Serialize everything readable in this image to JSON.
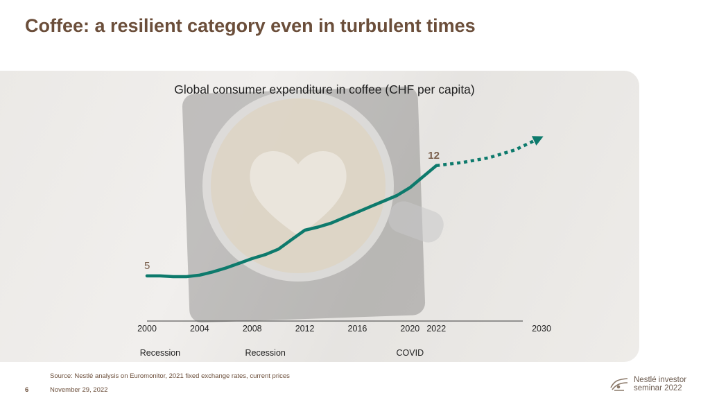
{
  "slide": {
    "title": "Coffee: a resilient category even in turbulent times",
    "source_note": "Source: Nestlé analysis on Euromonitor, 2021 fixed exchange rates, current prices",
    "page_number": "6",
    "date": "November 29, 2022",
    "logo_line1": "Nestlé investor",
    "logo_line2": "seminar 2022"
  },
  "colors": {
    "title": "#6b4e3a",
    "line": "#0d7a6c",
    "axis": "#3a3a3a"
  },
  "chart_data": {
    "type": "line",
    "title": "Global consumer expenditure in coffee (CHF per capita)",
    "xlabel": "",
    "ylabel": "",
    "x_ticks": [
      "2000",
      "2004",
      "2008",
      "2012",
      "2016",
      "2020",
      "2022",
      "2030"
    ],
    "xlim": [
      2000,
      2030
    ],
    "ylim": [
      3.5,
      14.5
    ],
    "grid": false,
    "series": [
      {
        "values": [
          [
            2000,
            5.0
          ],
          [
            2001,
            5.0
          ],
          [
            2002,
            4.95
          ],
          [
            2003,
            4.95
          ],
          [
            2004,
            5.05
          ],
          [
            2005,
            5.25
          ],
          [
            2006,
            5.5
          ],
          [
            2007,
            5.8
          ],
          [
            2008,
            6.1
          ],
          [
            2009,
            6.35
          ],
          [
            2010,
            6.7
          ],
          [
            2011,
            7.3
          ],
          [
            2012,
            7.9
          ],
          [
            2013,
            8.1
          ],
          [
            2014,
            8.35
          ],
          [
            2015,
            8.7
          ],
          [
            2016,
            9.05
          ],
          [
            2017,
            9.4
          ],
          [
            2018,
            9.75
          ],
          [
            2019,
            10.1
          ],
          [
            2020,
            10.6
          ],
          [
            2021,
            11.3
          ],
          [
            2022,
            12.0
          ]
        ]
      }
    ],
    "projection": {
      "style": "dotted-arrow",
      "values": [
        [
          2022,
          12.0
        ],
        [
          2024,
          12.2
        ],
        [
          2026,
          12.5
        ],
        [
          2028,
          13.0
        ],
        [
          2029,
          13.4
        ],
        [
          2030,
          13.8
        ]
      ]
    },
    "data_labels": [
      {
        "x": 2000,
        "y": 5.0,
        "text": "5"
      },
      {
        "x": 2022,
        "y": 12.0,
        "text": "12"
      }
    ],
    "annotations": [
      {
        "x": 2001,
        "text": "Recession"
      },
      {
        "x": 2009,
        "text": "Recession"
      },
      {
        "x": 2020,
        "text": "COVID"
      }
    ]
  }
}
